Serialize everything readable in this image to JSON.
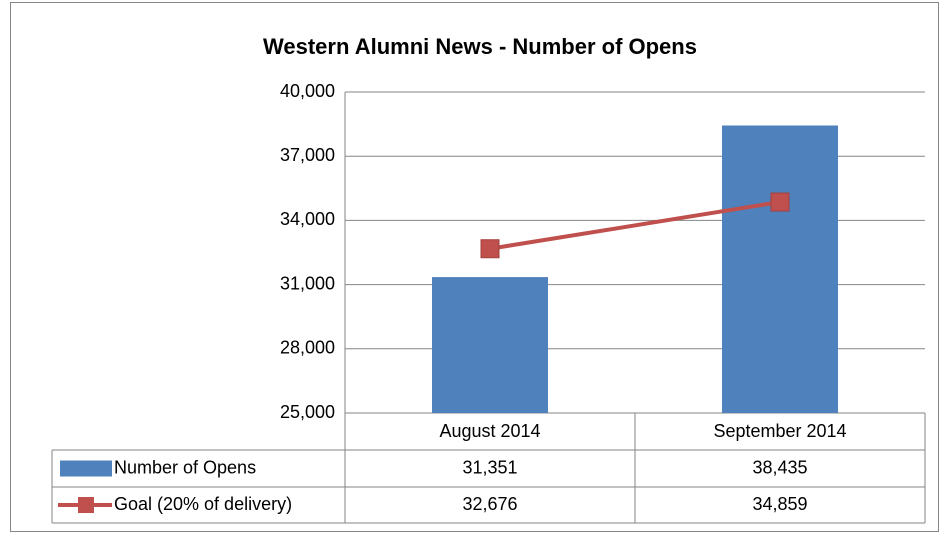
{
  "chart_data": {
    "type": "bar",
    "title": "Western Alumni News - Number of Opens",
    "categories": [
      "August 2014",
      "September 2014"
    ],
    "series": [
      {
        "name": "Number of Opens",
        "type": "bar",
        "color": "#4f81bd",
        "values": [
          31351,
          38435
        ],
        "value_labels": [
          "31,351",
          "38,435"
        ]
      },
      {
        "name": "Goal (20% of delivery)",
        "type": "line",
        "color": "#c0504d",
        "values": [
          32676,
          34859
        ],
        "value_labels": [
          "32,676",
          "34,859"
        ]
      }
    ],
    "ylim": [
      25000,
      40000
    ],
    "yticks": [
      {
        "value": 25000,
        "label": "25,000"
      },
      {
        "value": 28000,
        "label": "28,000"
      },
      {
        "value": 31000,
        "label": "31,000"
      },
      {
        "value": 34000,
        "label": "34,000"
      },
      {
        "value": 37000,
        "label": "37,000"
      },
      {
        "value": 40000,
        "label": "40,000"
      }
    ],
    "grid": true
  }
}
